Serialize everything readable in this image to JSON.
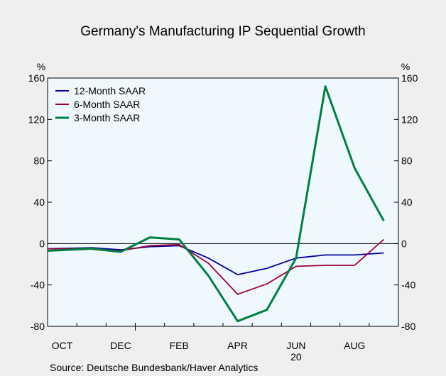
{
  "chart_data": {
    "type": "line",
    "title": "Germany's Manufacturing IP Sequential Growth",
    "y_unit_left": "%",
    "y_unit_right": "%",
    "source": "Source:   Deutsche Bundesbank/Haver Analytics",
    "ylim": [
      -80,
      160
    ],
    "yticks": [
      -80,
      -40,
      0,
      40,
      80,
      120,
      160
    ],
    "x": [
      "2019-10",
      "2019-11",
      "2019-12",
      "2020-01",
      "2020-02",
      "2020-03",
      "2020-04",
      "2020-05",
      "2020-06",
      "2020-07",
      "2020-08",
      "2020-09"
    ],
    "xtick_labels": [
      "OCT",
      "DEC",
      "FEB",
      "APR",
      "JUN",
      "AUG"
    ],
    "xtick_months": [
      "2019-10",
      "2019-12",
      "2020-02",
      "2020-04",
      "2020-06",
      "2020-08"
    ],
    "year_label": "20",
    "year_label_month": "2020-06",
    "zero_line": true,
    "grid": false,
    "legend_position": "top-left",
    "series": [
      {
        "name": "12-Month SAAR",
        "color": "#0000a0",
        "values": [
          -5,
          -4,
          -6,
          -3,
          -2,
          -14,
          -30,
          -24,
          -14,
          -11,
          -11,
          -9
        ]
      },
      {
        "name": "6-Month SAAR",
        "color": "#a0003a",
        "values": [
          -5,
          -5,
          -7,
          -2,
          -1,
          -19,
          -49,
          -39,
          -22,
          -21,
          -21,
          4
        ]
      },
      {
        "name": "3-Month SAAR",
        "color": "#008040",
        "values": [
          -7,
          -5,
          -8,
          6,
          4,
          -31,
          -75,
          -64,
          -14,
          152,
          73,
          22
        ]
      }
    ]
  }
}
